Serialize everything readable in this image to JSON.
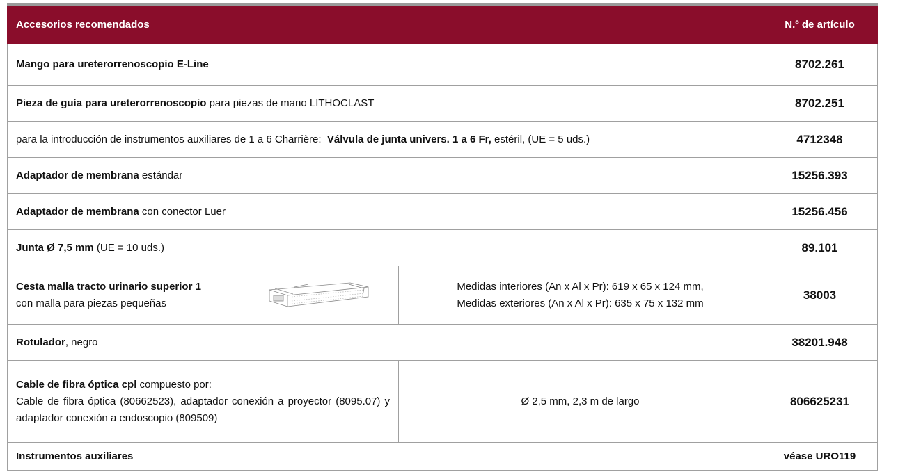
{
  "header": {
    "title": "Accesorios recomendados",
    "article": "N.º de artículo"
  },
  "rows": [
    {
      "name": "Mango para ureterorrenoscopio E-Line",
      "article": "8702.261"
    },
    {
      "name": "Pieza de guía para ureterorrenoscopio",
      "description": "para piezas de mano LITHOCLAST",
      "article": "8702.251"
    },
    {
      "prefix": "para la introducción de instrumentos auxiliares de 1 a 6 Charrière:",
      "name": "Válvula de junta univers. 1 a 6 Fr,",
      "description": "estéril, (UE = 5 uds.)",
      "article": "4712348"
    },
    {
      "name": "Adaptador de membrana",
      "description": "estándar",
      "article": "15256.393"
    },
    {
      "name": "Adaptador de membrana",
      "description": "con conector Luer",
      "article": "15256.456"
    },
    {
      "name": "Junta Ø 7,5 mm",
      "description": "(UE = 10 uds.)",
      "article": "89.101"
    },
    {
      "name": "Cesta malla tracto urinario superior 1",
      "description": "con malla para piezas pequeñas",
      "details": [
        "Medidas interiores (An x Al x Pr): 619 x 65 x 124 mm,",
        "Medidas exteriores (An x Al x Pr): 635 x 75 x 132 mm"
      ],
      "article": "38003"
    },
    {
      "name": "Rotulador",
      "description": ", negro",
      "article": "38201.948"
    },
    {
      "name": "Cable de fibra óptica cpl",
      "description": "compuesto por:",
      "components": "Cable de fibra óptica (80662523), adaptador conexión a proyector (8095.07) y adaptador conexión a endoscopio (809509)",
      "details": [
        "Ø 2,5 mm, 2,3 m de largo"
      ],
      "article": "806625231"
    },
    {
      "name": "Instrumentos auxiliares",
      "article": "véase URO119"
    }
  ]
}
